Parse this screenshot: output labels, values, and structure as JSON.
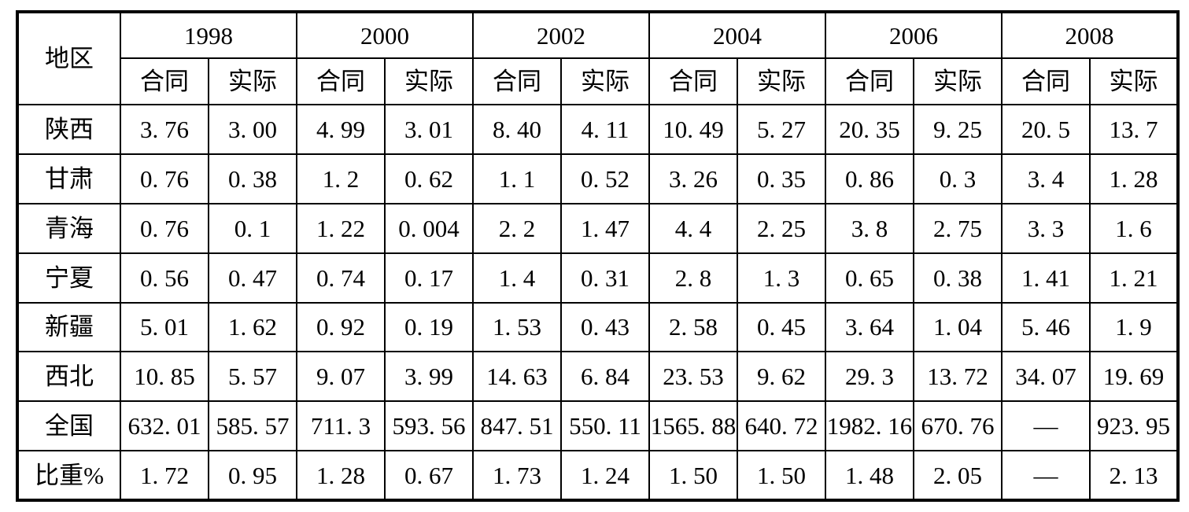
{
  "colors": {
    "background": "#ffffff",
    "border": "#000000",
    "text": "#000000"
  },
  "table": {
    "region_header": "地区",
    "years": [
      "1998",
      "2000",
      "2002",
      "2004",
      "2006",
      "2008"
    ],
    "sub_headers": {
      "contract": "合同",
      "actual": "实际"
    },
    "rows": [
      {
        "label": "陕西",
        "values": [
          "3. 76",
          "3. 00",
          "4. 99",
          "3. 01",
          "8. 40",
          "4. 11",
          "10. 49",
          "5. 27",
          "20. 35",
          "9. 25",
          "20. 5",
          "13. 7"
        ]
      },
      {
        "label": "甘肃",
        "values": [
          "0. 76",
          "0. 38",
          "1. 2",
          "0. 62",
          "1. 1",
          "0. 52",
          "3. 26",
          "0. 35",
          "0. 86",
          "0. 3",
          "3. 4",
          "1. 28"
        ]
      },
      {
        "label": "青海",
        "values": [
          "0. 76",
          "0. 1",
          "1. 22",
          "0. 004",
          "2. 2",
          "1. 47",
          "4. 4",
          "2. 25",
          "3. 8",
          "2. 75",
          "3. 3",
          "1. 6"
        ]
      },
      {
        "label": "宁夏",
        "values": [
          "0. 56",
          "0. 47",
          "0. 74",
          "0. 17",
          "1. 4",
          "0. 31",
          "2. 8",
          "1. 3",
          "0. 65",
          "0. 38",
          "1. 41",
          "1. 21"
        ]
      },
      {
        "label": "新疆",
        "values": [
          "5. 01",
          "1. 62",
          "0. 92",
          "0. 19",
          "1. 53",
          "0. 43",
          "2. 58",
          "0. 45",
          "3. 64",
          "1. 04",
          "5. 46",
          "1. 9"
        ]
      },
      {
        "label": "西北",
        "values": [
          "10. 85",
          "5. 57",
          "9. 07",
          "3. 99",
          "14. 63",
          "6. 84",
          "23. 53",
          "9. 62",
          "29. 3",
          "13. 72",
          "34. 07",
          "19. 69"
        ]
      },
      {
        "label": "全国",
        "values": [
          "632. 01",
          "585. 57",
          "711. 3",
          "593. 56",
          "847. 51",
          "550. 11",
          "1565. 88",
          "640. 72",
          "1982. 16",
          "670. 76",
          "—",
          "923. 95"
        ]
      },
      {
        "label": "比重%",
        "values": [
          "1. 72",
          "0. 95",
          "1. 28",
          "0. 67",
          "1. 73",
          "1. 24",
          "1. 50",
          "1. 50",
          "1. 48",
          "2. 05",
          "—",
          "2. 13"
        ]
      }
    ]
  }
}
